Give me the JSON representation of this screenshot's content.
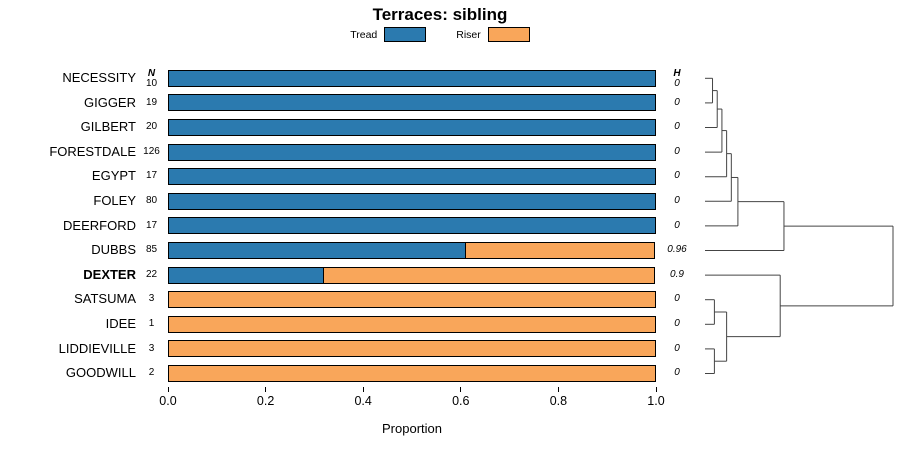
{
  "title": "Terraces: sibling",
  "xlabel": "Proportion",
  "columns": {
    "n_header": "N",
    "h_header": "H"
  },
  "x_ticks": [
    "0.0",
    "0.2",
    "0.4",
    "0.6",
    "0.8",
    "1.0"
  ],
  "legend": {
    "items": [
      {
        "label": "Tread",
        "color": "#2B7AAF"
      },
      {
        "label": "Riser",
        "color": "#F9A65A"
      }
    ]
  },
  "chart_data": {
    "type": "bar",
    "orientation": "horizontal",
    "stacked": true,
    "xlim": [
      0,
      1
    ],
    "xlabel": "Proportion",
    "series_names": [
      "Tread",
      "Riser"
    ],
    "rows": [
      {
        "label": "NECESSITY",
        "n": 10,
        "tread": 1.0,
        "riser": 0.0,
        "h": "0",
        "bold": false
      },
      {
        "label": "GIGGER",
        "n": 19,
        "tread": 1.0,
        "riser": 0.0,
        "h": "0",
        "bold": false
      },
      {
        "label": "GILBERT",
        "n": 20,
        "tread": 1.0,
        "riser": 0.0,
        "h": "0",
        "bold": false
      },
      {
        "label": "FORESTDALE",
        "n": 126,
        "tread": 1.0,
        "riser": 0.0,
        "h": "0",
        "bold": false
      },
      {
        "label": "EGYPT",
        "n": 17,
        "tread": 1.0,
        "riser": 0.0,
        "h": "0",
        "bold": false
      },
      {
        "label": "FOLEY",
        "n": 80,
        "tread": 1.0,
        "riser": 0.0,
        "h": "0",
        "bold": false
      },
      {
        "label": "DEERFORD",
        "n": 17,
        "tread": 1.0,
        "riser": 0.0,
        "h": "0",
        "bold": false
      },
      {
        "label": "DUBBS",
        "n": 85,
        "tread": 0.61,
        "riser": 0.39,
        "h": "0.96",
        "bold": false
      },
      {
        "label": "DEXTER",
        "n": 22,
        "tread": 0.32,
        "riser": 0.68,
        "h": "0.9",
        "bold": true
      },
      {
        "label": "SATSUMA",
        "n": 3,
        "tread": 0.0,
        "riser": 1.0,
        "h": "0",
        "bold": false
      },
      {
        "label": "IDEE",
        "n": 1,
        "tread": 0.0,
        "riser": 1.0,
        "h": "0",
        "bold": false
      },
      {
        "label": "LIDDIEVILLE",
        "n": 3,
        "tread": 0.0,
        "riser": 1.0,
        "h": "0",
        "bold": false
      },
      {
        "label": "GOODWILL",
        "n": 2,
        "tread": 0.0,
        "riser": 1.0,
        "h": "0",
        "bold": false
      }
    ],
    "dendrogram": {
      "note": "right-side hierarchical clustering of rows; heights normalized 0-1",
      "merges": [
        {
          "a": "L0",
          "b": "L1",
          "h": 0.04
        },
        {
          "a": "M0",
          "b": "L2",
          "h": 0.065
        },
        {
          "a": "M1",
          "b": "L3",
          "h": 0.09
        },
        {
          "a": "M2",
          "b": "L4",
          "h": 0.115
        },
        {
          "a": "M3",
          "b": "L5",
          "h": 0.14
        },
        {
          "a": "M4",
          "b": "L6",
          "h": 0.175
        },
        {
          "a": "M5",
          "b": "L7",
          "h": 0.42
        },
        {
          "a": "L9",
          "b": "L10",
          "h": 0.05
        },
        {
          "a": "L11",
          "b": "L12",
          "h": 0.05
        },
        {
          "a": "M7",
          "b": "M8",
          "h": 0.115
        },
        {
          "a": "L8",
          "b": "M9",
          "h": 0.4
        },
        {
          "a": "M6",
          "b": "M10",
          "h": 1.0
        }
      ]
    }
  }
}
